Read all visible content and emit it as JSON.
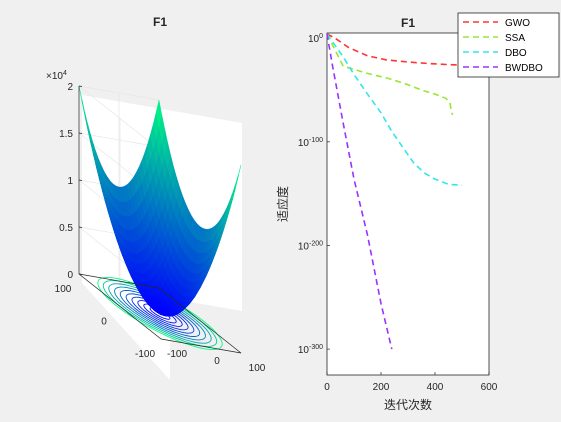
{
  "chart_data": [
    {
      "type": "surface",
      "title": "F1",
      "z_multiplier": "×10",
      "z_exponent": "4",
      "z_ticks": [
        "0",
        "0.5",
        "1",
        "1.5",
        "2"
      ],
      "z_tick_values": [
        0,
        0.5,
        1,
        1.5,
        2
      ],
      "x_ticks": [
        "-100",
        "0",
        "100"
      ],
      "x_tick_values": [
        -100,
        0,
        100
      ],
      "y_ticks": [
        "-100",
        "0",
        "100"
      ],
      "y_tick_values": [
        -100,
        0,
        100
      ],
      "xlim": [
        -100,
        100
      ],
      "ylim": [
        -100,
        100
      ],
      "zlim": [
        0,
        20000
      ],
      "function": "z = x^2 + y^2",
      "contour_levels": [
        300,
        800,
        1500,
        2400,
        3500,
        4800,
        6300,
        8000,
        9800,
        11800
      ],
      "colormap": "winter",
      "grid": true
    },
    {
      "type": "line",
      "title": "F1",
      "xlabel": "迭代次数",
      "ylabel": "适应度",
      "xlim": [
        0,
        600
      ],
      "ylim_log10": [
        -325,
        5
      ],
      "y_scale": "log",
      "x_ticks": [
        "0",
        "200",
        "400",
        "600"
      ],
      "x_tick_values": [
        0,
        200,
        400,
        600
      ],
      "y_tick_bases": [
        "10",
        "10",
        "10",
        "10"
      ],
      "y_tick_exps": [
        "0",
        "-100",
        "-200",
        "-300"
      ],
      "y_tick_values_log10": [
        0,
        -100,
        -200,
        -300
      ],
      "legend_position": "top-right",
      "series": [
        {
          "name": "GWO",
          "color": "#ff3333",
          "x": [
            0,
            30,
            80,
            150,
            220,
            300,
            380,
            450,
            480,
            500
          ],
          "log10_y": [
            4,
            0,
            -9,
            -17,
            -21,
            -23,
            -24.5,
            -25.5,
            -25.8,
            -26
          ]
        },
        {
          "name": "SSA",
          "color": "#99e633",
          "x": [
            0,
            60,
            150,
            230,
            290,
            350,
            400,
            440,
            455,
            460,
            465
          ],
          "log10_y": [
            4,
            -27,
            -34,
            -39,
            -44,
            -50,
            -54,
            -58,
            -62,
            -70,
            -74
          ]
        },
        {
          "name": "DBO",
          "color": "#33e6e6",
          "x": [
            0,
            60,
            100,
            150,
            200,
            240,
            280,
            320,
            360,
            400,
            450,
            500
          ],
          "log10_y": [
            4,
            -18,
            -35,
            -54,
            -72,
            -90,
            -105,
            -120,
            -130,
            -136,
            -141,
            -142
          ]
        },
        {
          "name": "BWDBO",
          "color": "#9933ff",
          "x": [
            0,
            20,
            60,
            100,
            150,
            200,
            240
          ],
          "log10_y": [
            4,
            -26,
            -82,
            -136,
            -190,
            -256,
            -300
          ]
        }
      ]
    }
  ]
}
